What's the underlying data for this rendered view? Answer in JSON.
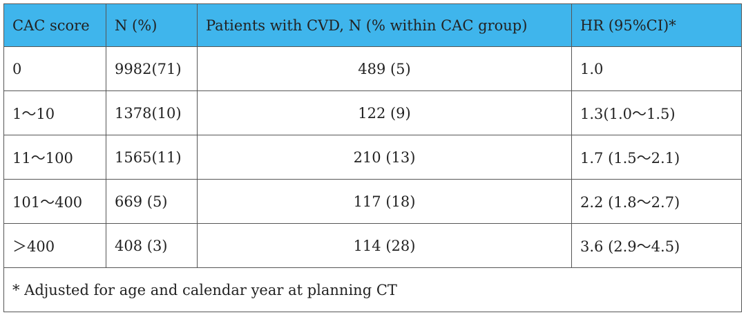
{
  "table": {
    "header": [
      "CAC score",
      "N (%)",
      "Patients with CVD, N (% within CAC group)",
      "HR (95%CI)*"
    ],
    "rows": [
      [
        "0",
        "9982(71)",
        "489 (5)",
        "1.0"
      ],
      [
        "1～10",
        "1378(10)",
        "122 (9)",
        "1.3(1.0～1.5)"
      ],
      [
        "11～100",
        "1565(11)",
        "210 (13)",
        "1.7 (1.5～2.1)"
      ],
      [
        "101～400",
        "669 (5)",
        "117 (18)",
        "2.2 (1.8～2.7)"
      ],
      [
        "＞400",
        "408 (3)",
        "114 (28)",
        "3.6 (2.9～4.5)"
      ]
    ],
    "footnote": "* Adjusted for age and calendar year at planning CT"
  }
}
